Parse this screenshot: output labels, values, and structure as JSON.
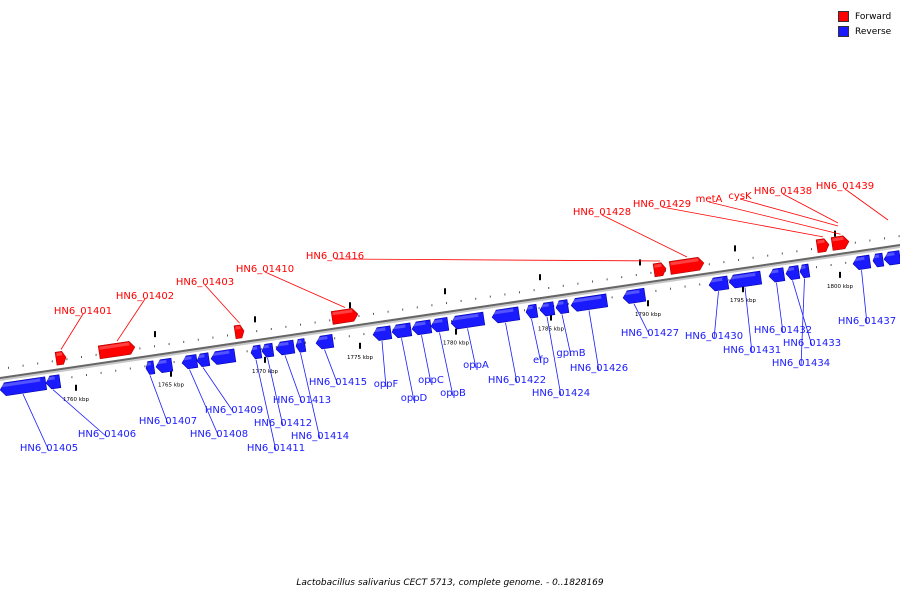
{
  "legend": {
    "forward_label": "Forward",
    "reverse_label": "Reverse",
    "forward_color": "#ff0000",
    "reverse_color": "#1a1aff"
  },
  "caption": "Lactobacillus salivarius CECT 5713, complete genome. - 0..1828169",
  "ruler_labels": [
    "1760 kbp",
    "1765 kbp",
    "1770 kbp",
    "1775 kbp",
    "1780 kbp",
    "1785 kbp",
    "1790 kbp",
    "1795 kbp",
    "1800 kbp"
  ],
  "forward_genes": [
    "HN6_01401",
    "HN6_01402",
    "HN6_01403",
    "HN6_01410",
    "HN6_01416",
    "HN6_01428",
    "HN6_01429",
    "metA",
    "cysK",
    "HN6_01438",
    "HN6_01439"
  ],
  "reverse_genes": [
    "HN6_01405",
    "HN6_01406",
    "HN6_01407",
    "HN6_01408",
    "HN6_01409",
    "HN6_01411",
    "HN6_01412",
    "HN6_01413",
    "HN6_01414",
    "HN6_01415",
    "oppF",
    "oppD",
    "oppC",
    "oppB",
    "oppA",
    "HN6_01422",
    "efp",
    "HN6_01424",
    "gpmB",
    "HN6_01426",
    "HN6_01427",
    "HN6_01430",
    "HN6_01431",
    "HN6_01432",
    "HN6_01433",
    "HN6_01434",
    "HN6_01437"
  ]
}
